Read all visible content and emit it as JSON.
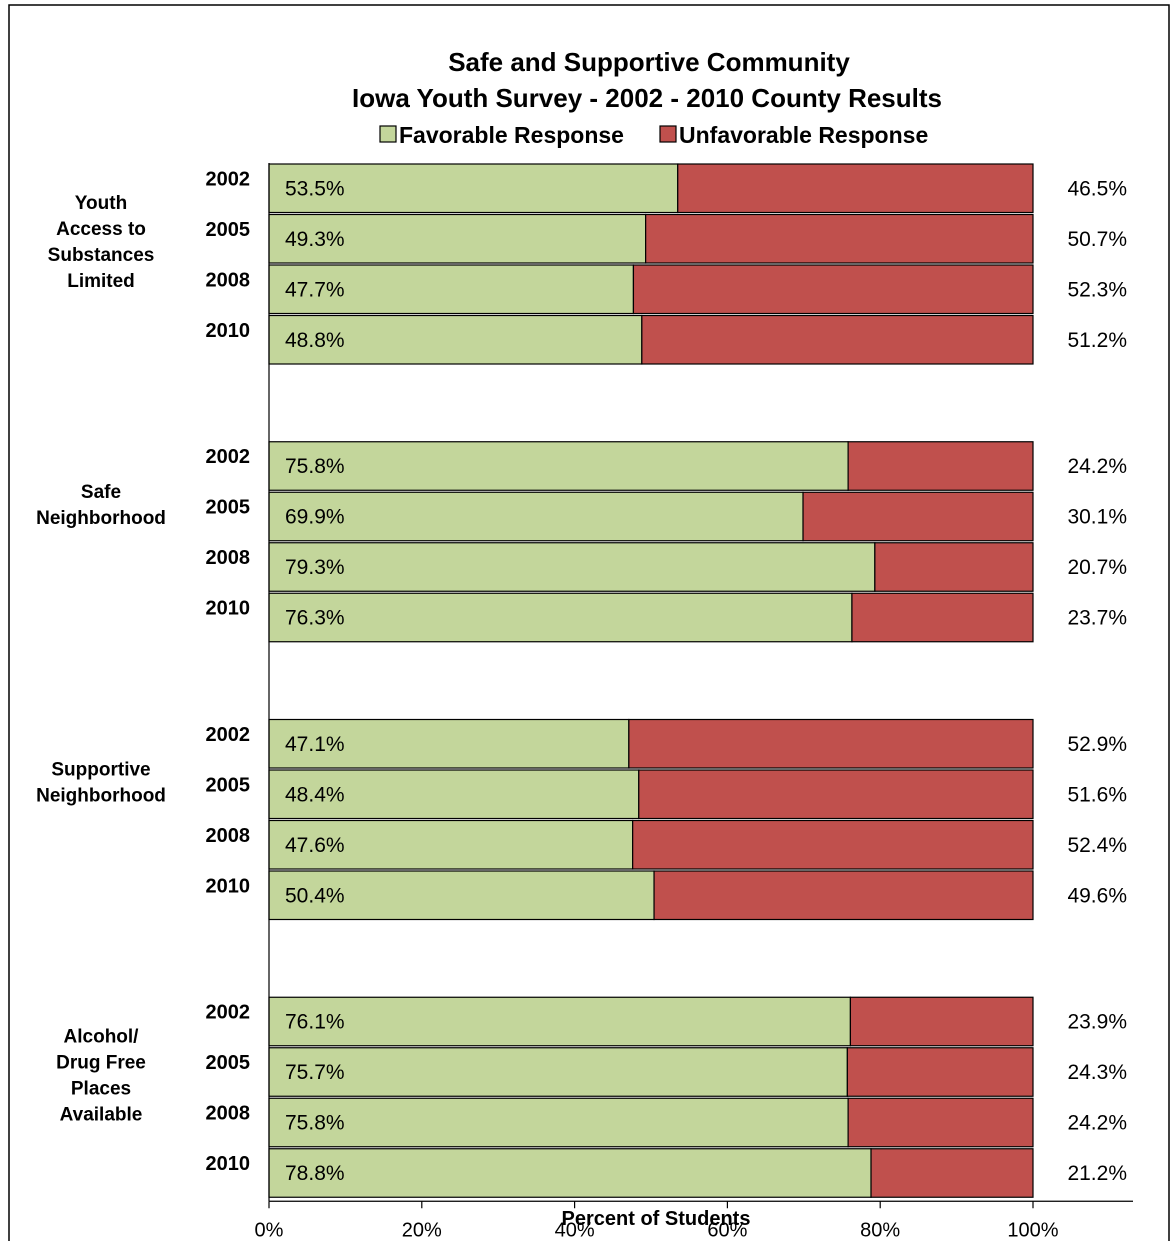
{
  "chart_data": {
    "type": "bar",
    "orientation": "horizontal",
    "stacked": true,
    "title": "Safe and Supportive Community",
    "subtitle": "Iowa Youth Survey - 2002 - 2010 County Results",
    "xlabel": "Percent of Students",
    "ylabel": "",
    "xlim": [
      0,
      100
    ],
    "x_ticks": [
      "0%",
      "20%",
      "40%",
      "60%",
      "80%",
      "100%"
    ],
    "x_tick_values": [
      0,
      20,
      40,
      60,
      80,
      100
    ],
    "legend": {
      "placement": "top",
      "entries": [
        "Favorable Response",
        "Unfavorable Response"
      ]
    },
    "colors": {
      "favorable": "#c3d69b",
      "unfavorable": "#c0504d",
      "outline": "#000000"
    },
    "grid": false,
    "groups": [
      {
        "label": "Youth Access to Substances Limited",
        "label_lines": [
          "Youth",
          "Access to",
          "Substances",
          "Limited"
        ],
        "rows": [
          {
            "year": "2002",
            "favorable": 53.5,
            "unfavorable": 46.5,
            "favorable_label": "53.5%",
            "unfavorable_label": "46.5%"
          },
          {
            "year": "2005",
            "favorable": 49.3,
            "unfavorable": 50.7,
            "favorable_label": "49.3%",
            "unfavorable_label": "50.7%"
          },
          {
            "year": "2008",
            "favorable": 47.7,
            "unfavorable": 52.3,
            "favorable_label": "47.7%",
            "unfavorable_label": "52.3%"
          },
          {
            "year": "2010",
            "favorable": 48.8,
            "unfavorable": 51.2,
            "favorable_label": "48.8%",
            "unfavorable_label": "51.2%"
          }
        ]
      },
      {
        "label": "Safe Neighborhood",
        "label_lines": [
          "Safe",
          "Neighborhood"
        ],
        "rows": [
          {
            "year": "2002",
            "favorable": 75.8,
            "unfavorable": 24.2,
            "favorable_label": "75.8%",
            "unfavorable_label": "24.2%"
          },
          {
            "year": "2005",
            "favorable": 69.9,
            "unfavorable": 30.1,
            "favorable_label": "69.9%",
            "unfavorable_label": "30.1%"
          },
          {
            "year": "2008",
            "favorable": 79.3,
            "unfavorable": 20.7,
            "favorable_label": "79.3%",
            "unfavorable_label": "20.7%"
          },
          {
            "year": "2010",
            "favorable": 76.3,
            "unfavorable": 23.7,
            "favorable_label": "76.3%",
            "unfavorable_label": "23.7%"
          }
        ]
      },
      {
        "label": "Supportive Neighborhood",
        "label_lines": [
          "Supportive",
          "Neighborhood"
        ],
        "rows": [
          {
            "year": "2002",
            "favorable": 47.1,
            "unfavorable": 52.9,
            "favorable_label": "47.1%",
            "unfavorable_label": "52.9%"
          },
          {
            "year": "2005",
            "favorable": 48.4,
            "unfavorable": 51.6,
            "favorable_label": "48.4%",
            "unfavorable_label": "51.6%"
          },
          {
            "year": "2008",
            "favorable": 47.6,
            "unfavorable": 52.4,
            "favorable_label": "47.6%",
            "unfavorable_label": "52.4%"
          },
          {
            "year": "2010",
            "favorable": 50.4,
            "unfavorable": 49.6,
            "favorable_label": "50.4%",
            "unfavorable_label": "49.6%"
          }
        ]
      },
      {
        "label": "Alcohol/ Drug Free Places Available",
        "label_lines": [
          "Alcohol/",
          "Drug Free",
          "Places",
          "Available"
        ],
        "rows": [
          {
            "year": "2002",
            "favorable": 76.1,
            "unfavorable": 23.9,
            "favorable_label": "76.1%",
            "unfavorable_label": "23.9%"
          },
          {
            "year": "2005",
            "favorable": 75.7,
            "unfavorable": 24.3,
            "favorable_label": "75.7%",
            "unfavorable_label": "24.3%"
          },
          {
            "year": "2008",
            "favorable": 75.8,
            "unfavorable": 24.2,
            "favorable_label": "75.8%",
            "unfavorable_label": "24.2%"
          },
          {
            "year": "2010",
            "favorable": 78.8,
            "unfavorable": 21.2,
            "favorable_label": "78.8%",
            "unfavorable_label": "21.2%"
          }
        ]
      }
    ]
  }
}
